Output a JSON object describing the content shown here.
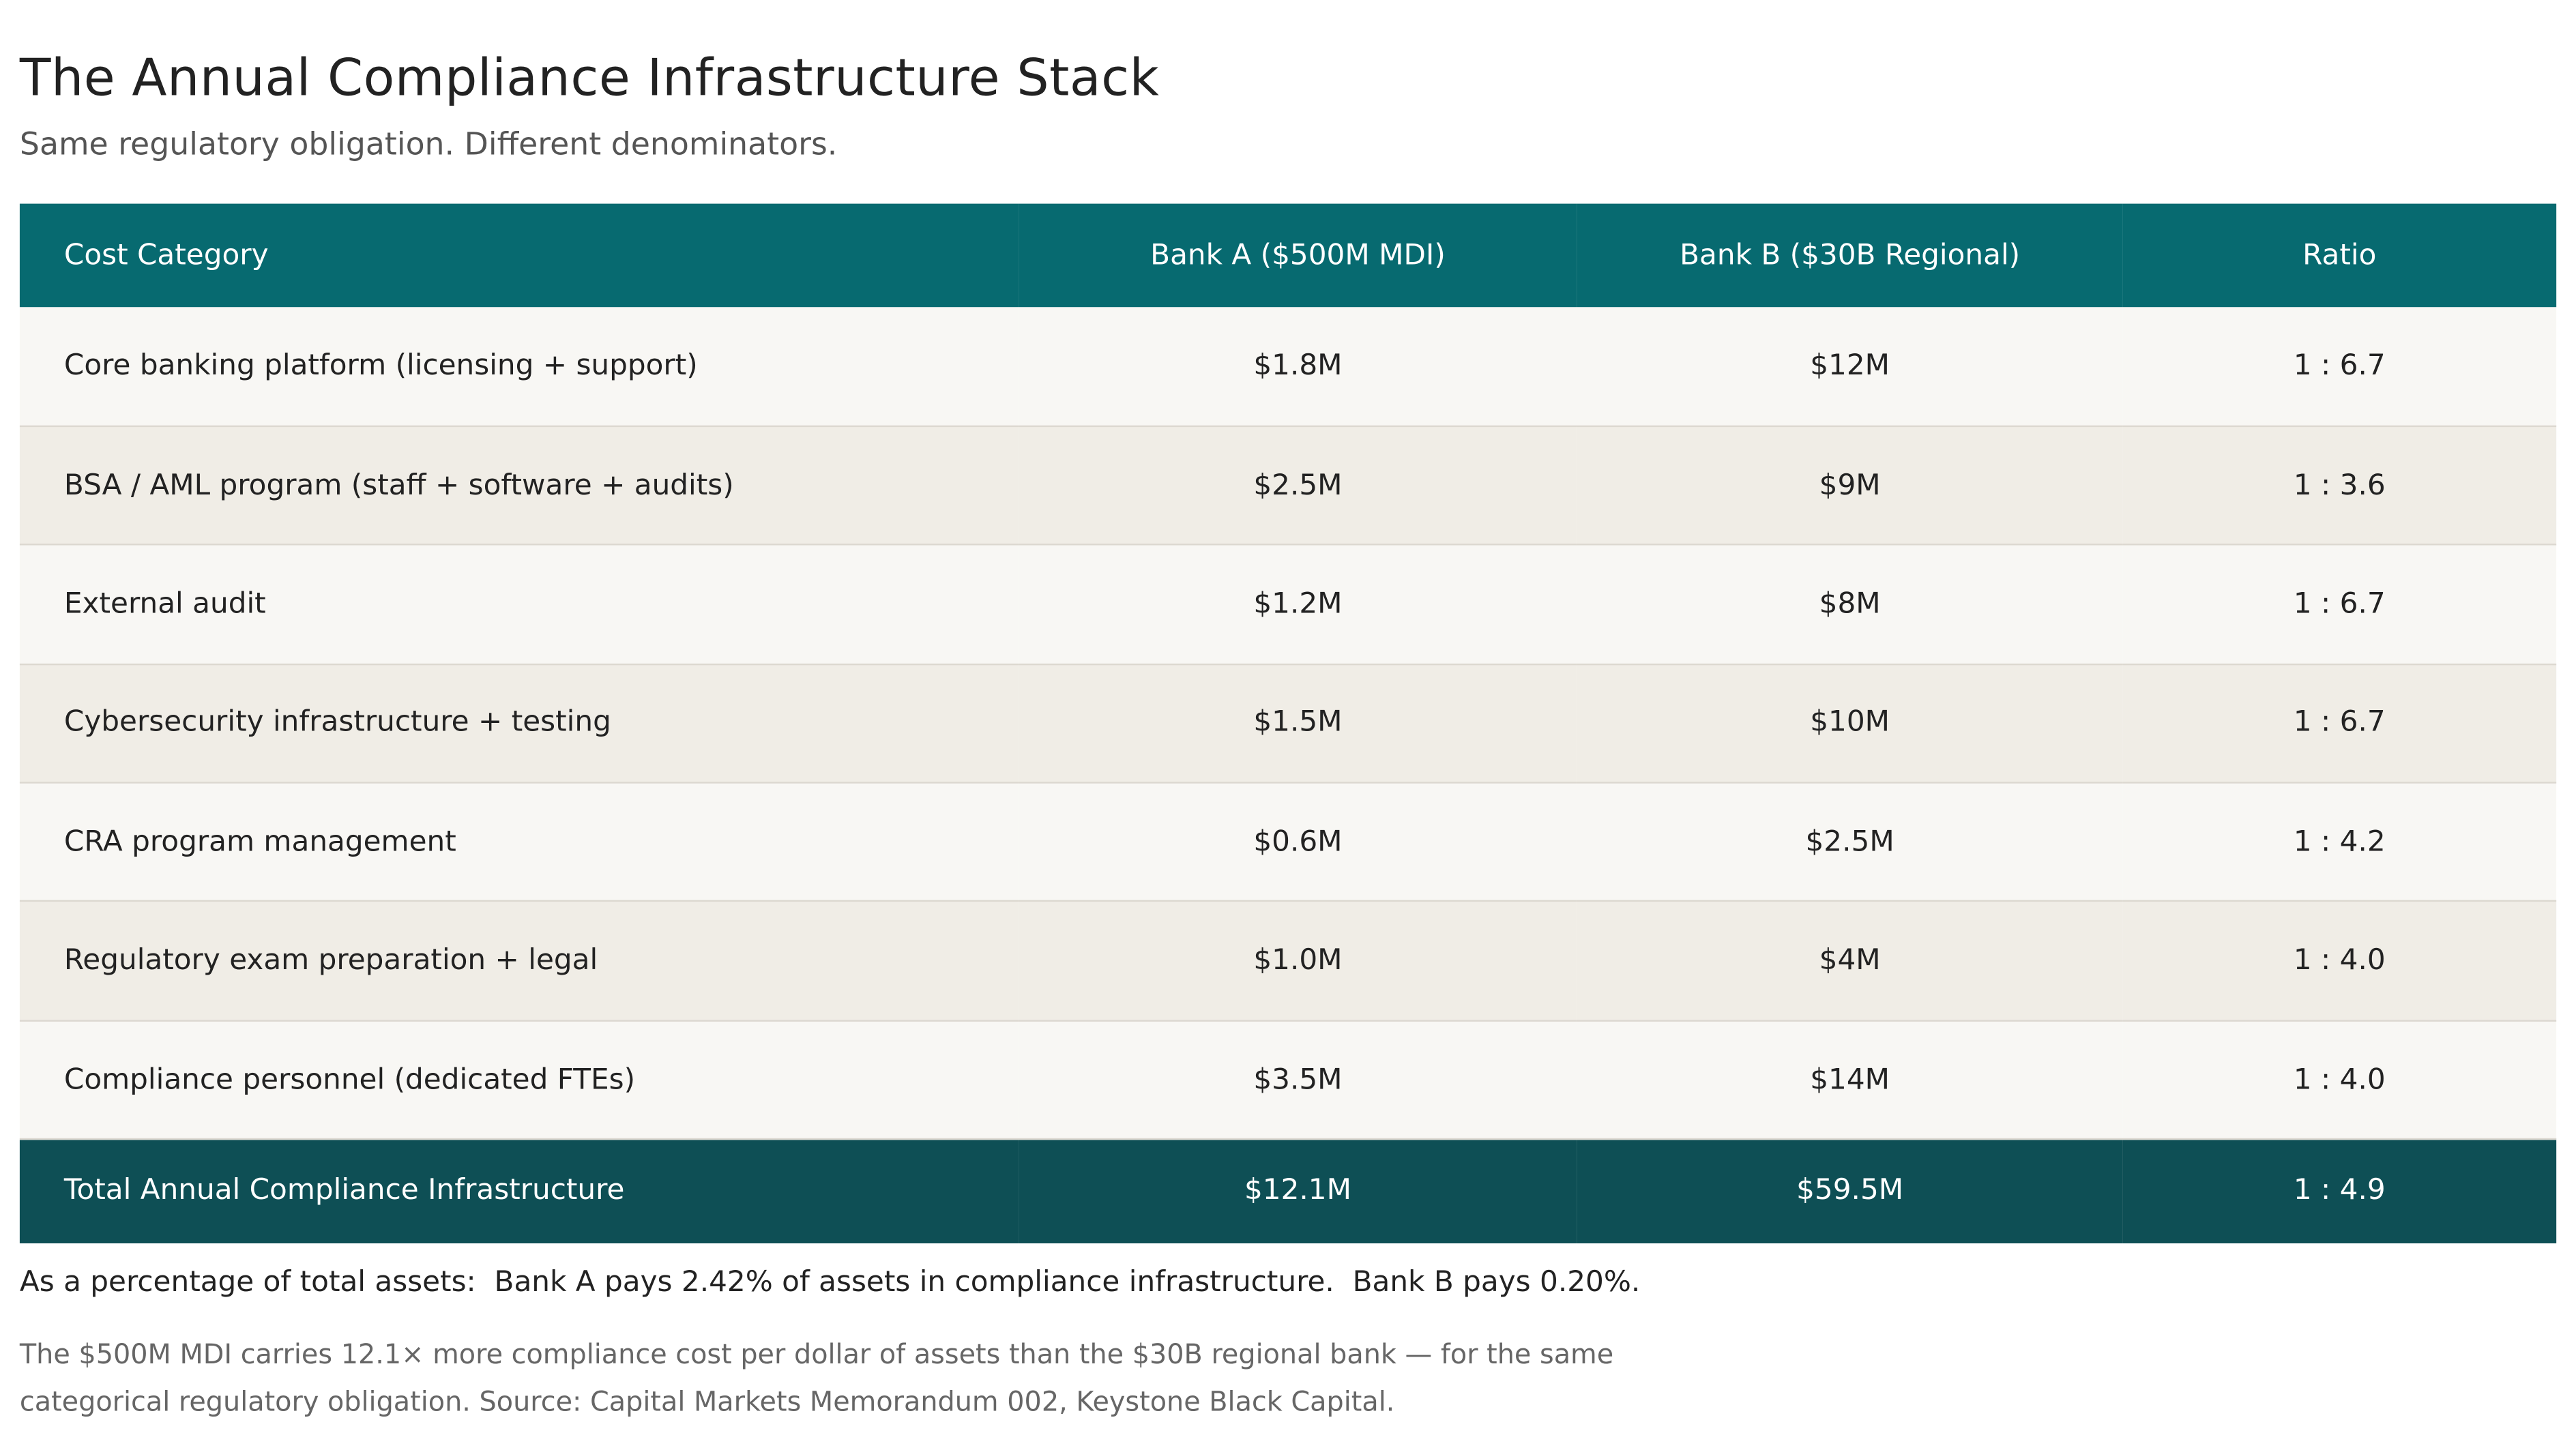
{
  "header": {
    "title": "The Annual Compliance Infrastructure Stack",
    "subtitle": "Same regulatory obligation. Different denominators."
  },
  "table": {
    "columns": [
      "Cost Category",
      "Bank A ($500M MDI)",
      "Bank B ($30B Regional)",
      "Ratio"
    ],
    "rows": [
      [
        "Core banking platform (licensing + support)",
        "$1.8M",
        "$12M",
        "1 : 6.7"
      ],
      [
        "BSA / AML program (staff + software + audits)",
        "$2.5M",
        "$9M",
        "1 : 3.6"
      ],
      [
        "External audit",
        "$1.2M",
        "$8M",
        "1 : 6.7"
      ],
      [
        "Cybersecurity infrastructure + testing",
        "$1.5M",
        "$10M",
        "1 : 6.7"
      ],
      [
        "CRA program management",
        "$0.6M",
        "$2.5M",
        "1 : 4.2"
      ],
      [
        "Regulatory exam preparation + legal",
        "$1.0M",
        "$4M",
        "1 : 4.0"
      ],
      [
        "Compliance personnel (dedicated FTEs)",
        "$3.5M",
        "$14M",
        "1 : 4.0"
      ]
    ],
    "total": [
      "Total Annual Compliance Infrastructure",
      "$12.1M",
      "$59.5M",
      "1 : 4.9"
    ]
  },
  "footer": {
    "summary": "As a percentage of total assets:  Bank A pays 2.42% of assets in compliance infrastructure.  Bank B pays 0.20%.",
    "note": "The $500M MDI carries 12.1× more compliance cost per dollar of assets than the $30B regional bank — for the same categorical regulatory obligation. Source: Capital Markets Memorandum 002, Keystone Black Capital."
  }
}
